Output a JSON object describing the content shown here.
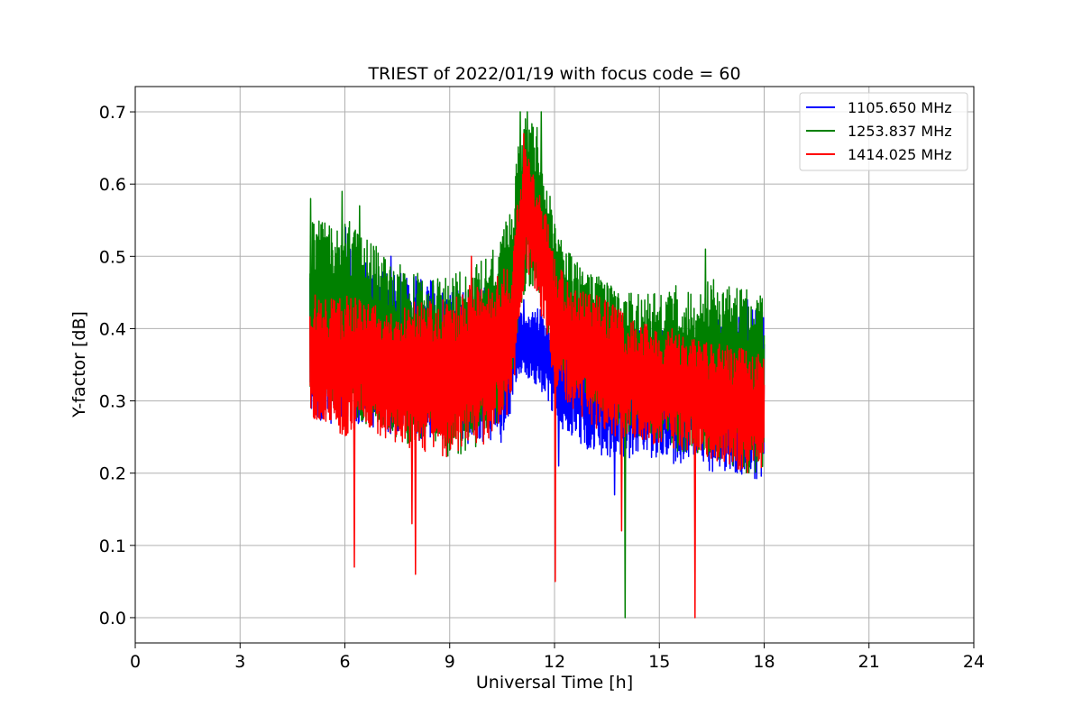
{
  "chart_data": {
    "type": "line",
    "title": "TRIEST of 2022/01/19 with focus code = 60",
    "xlabel": "Universal Time [h]",
    "ylabel": "Y-factor [dB]",
    "xlim": [
      0,
      24
    ],
    "ylim": [
      -0.035,
      0.735
    ],
    "xticks": [
      0,
      3,
      6,
      9,
      12,
      15,
      18,
      21,
      24
    ],
    "xtick_labels": [
      "0",
      "3",
      "6",
      "9",
      "12",
      "15",
      "18",
      "21",
      "24"
    ],
    "yticks": [
      0.0,
      0.1,
      0.2,
      0.3,
      0.4,
      0.5,
      0.6,
      0.7
    ],
    "ytick_labels": [
      "0.0",
      "0.1",
      "0.2",
      "0.3",
      "0.4",
      "0.5",
      "0.6",
      "0.7"
    ],
    "grid": true,
    "legend_position": "top-right",
    "series": [
      {
        "name": "1105.650 MHz",
        "color": "#0000ff",
        "x": [
          5.0,
          5.5,
          6.0,
          6.5,
          7.0,
          7.5,
          8.0,
          8.5,
          9.0,
          9.5,
          10.0,
          10.5,
          10.8,
          11.0,
          11.2,
          11.5,
          11.8,
          12.0,
          12.5,
          13.0,
          13.5,
          14.0,
          14.5,
          15.0,
          15.5,
          16.0,
          16.5,
          17.0,
          17.5,
          18.0
        ],
        "lower": [
          0.27,
          0.27,
          0.26,
          0.27,
          0.26,
          0.25,
          0.24,
          0.25,
          0.24,
          0.24,
          0.24,
          0.24,
          0.29,
          0.34,
          0.33,
          0.32,
          0.3,
          0.27,
          0.25,
          0.23,
          0.22,
          0.22,
          0.22,
          0.22,
          0.21,
          0.22,
          0.2,
          0.2,
          0.19,
          0.19
        ],
        "upper": [
          0.48,
          0.49,
          0.52,
          0.5,
          0.48,
          0.48,
          0.48,
          0.47,
          0.45,
          0.46,
          0.46,
          0.47,
          0.47,
          0.43,
          0.42,
          0.43,
          0.42,
          0.4,
          0.41,
          0.41,
          0.4,
          0.4,
          0.4,
          0.4,
          0.4,
          0.39,
          0.42,
          0.41,
          0.43,
          0.44
        ],
        "spikes": [
          [
            5.5,
            0.52
          ],
          [
            6.0,
            0.54
          ],
          [
            7.3,
            0.5
          ],
          [
            11.1,
            0.44
          ],
          [
            12.1,
            0.21
          ],
          [
            13.7,
            0.17
          ],
          [
            17.5,
            0.44
          ]
        ]
      },
      {
        "name": "1253.837 MHz",
        "color": "#008000",
        "x": [
          5.0,
          5.5,
          6.0,
          6.5,
          7.0,
          7.5,
          8.0,
          8.5,
          9.0,
          9.5,
          10.0,
          10.5,
          10.8,
          11.0,
          11.2,
          11.5,
          11.8,
          12.0,
          12.5,
          13.0,
          13.5,
          14.0,
          14.5,
          15.0,
          15.5,
          16.0,
          16.5,
          17.0,
          17.5,
          18.0
        ],
        "lower": [
          0.3,
          0.3,
          0.28,
          0.27,
          0.26,
          0.24,
          0.24,
          0.25,
          0.22,
          0.23,
          0.24,
          0.28,
          0.32,
          0.42,
          0.46,
          0.44,
          0.4,
          0.35,
          0.33,
          0.3,
          0.27,
          0.26,
          0.25,
          0.24,
          0.23,
          0.23,
          0.22,
          0.21,
          0.2,
          0.2
        ],
        "upper": [
          0.55,
          0.55,
          0.56,
          0.53,
          0.51,
          0.49,
          0.48,
          0.47,
          0.48,
          0.48,
          0.5,
          0.53,
          0.58,
          0.68,
          0.7,
          0.68,
          0.6,
          0.56,
          0.5,
          0.48,
          0.47,
          0.45,
          0.45,
          0.45,
          0.46,
          0.45,
          0.47,
          0.46,
          0.46,
          0.45
        ],
        "spikes": [
          [
            5.0,
            0.58
          ],
          [
            5.9,
            0.59
          ],
          [
            6.4,
            0.57
          ],
          [
            11.0,
            0.7
          ],
          [
            11.2,
            0.7
          ],
          [
            11.6,
            0.7
          ],
          [
            16.3,
            0.51
          ],
          [
            14.0,
            0.0
          ]
        ]
      },
      {
        "name": "1414.025 MHz",
        "color": "#ff0000",
        "x": [
          5.0,
          5.5,
          6.0,
          6.5,
          7.0,
          7.5,
          8.0,
          8.5,
          9.0,
          9.5,
          10.0,
          10.5,
          10.8,
          11.0,
          11.2,
          11.5,
          11.8,
          12.0,
          12.5,
          13.0,
          13.5,
          14.0,
          14.5,
          15.0,
          15.5,
          16.0,
          16.5,
          17.0,
          17.5,
          18.0
        ],
        "lower": [
          0.28,
          0.26,
          0.25,
          0.27,
          0.25,
          0.24,
          0.23,
          0.23,
          0.22,
          0.24,
          0.24,
          0.26,
          0.3,
          0.42,
          0.48,
          0.44,
          0.38,
          0.32,
          0.29,
          0.27,
          0.25,
          0.25,
          0.24,
          0.24,
          0.23,
          0.23,
          0.22,
          0.21,
          0.2,
          0.2
        ],
        "upper": [
          0.45,
          0.44,
          0.45,
          0.44,
          0.43,
          0.42,
          0.44,
          0.44,
          0.44,
          0.46,
          0.46,
          0.48,
          0.5,
          0.62,
          0.66,
          0.6,
          0.55,
          0.5,
          0.46,
          0.45,
          0.44,
          0.42,
          0.41,
          0.4,
          0.4,
          0.39,
          0.38,
          0.38,
          0.37,
          0.37
        ],
        "spikes": [
          [
            6.25,
            0.07
          ],
          [
            8.0,
            0.06
          ],
          [
            12.0,
            0.05
          ],
          [
            16.0,
            0.0
          ],
          [
            13.9,
            0.12
          ],
          [
            7.9,
            0.13
          ],
          [
            9.6,
            0.5
          ],
          [
            11.1,
            0.67
          ]
        ]
      }
    ]
  }
}
